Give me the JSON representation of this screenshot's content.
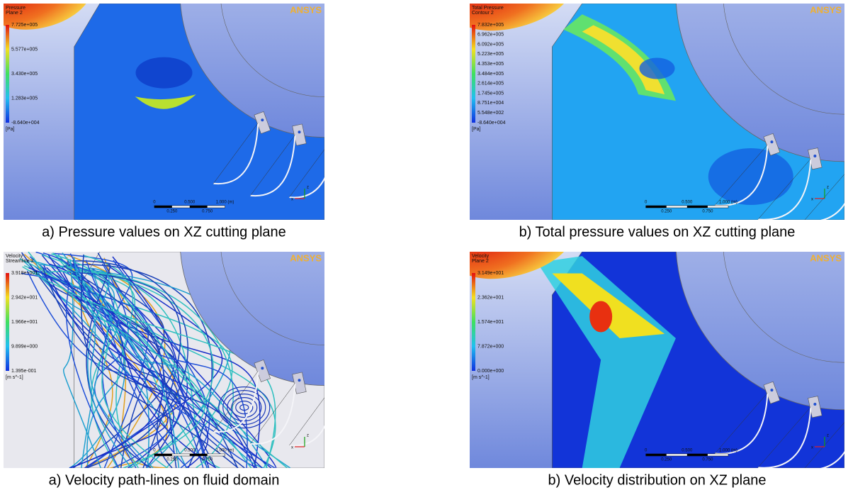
{
  "panels": [
    {
      "caption": "a) Pressure values on XZ cutting plane",
      "legend_title": [
        "Pressure",
        "Plane 2"
      ],
      "legend_labels": [
        "7.725e+005",
        "5.577e+005",
        "3.430e+005",
        "1.283e+005",
        "-8.640e+004"
      ],
      "unit": "[Pa]",
      "logo": "ANSYS",
      "scale_top": [
        "0",
        "0.500",
        "1.000 (m)"
      ],
      "scale_bottom": [
        "0.250",
        "0.750"
      ],
      "axes": [
        "z",
        "x"
      ]
    },
    {
      "caption": "b) Total pressure values on XZ cutting plane",
      "legend_title": [
        "Total Pressure",
        "Contour 2"
      ],
      "legend_labels": [
        "7.832e+005",
        "6.962e+005",
        "6.092e+005",
        "5.223e+005",
        "4.353e+005",
        "3.484e+005",
        "2.614e+005",
        "1.745e+005",
        "8.751e+004",
        "5.548e+002",
        "-8.640e+004"
      ],
      "unit": "[Pa]",
      "logo": "ANSYS",
      "scale_top": [
        "0",
        "0.500",
        "1.000 (m)"
      ],
      "scale_bottom": [
        "0.250",
        "0.750"
      ],
      "axes": [
        "z",
        "x"
      ]
    },
    {
      "caption": "a) Velocity path-lines on fluid domain",
      "legend_title": [
        "Velocity",
        "Streamline 3"
      ],
      "legend_labels": [
        "3.918e+001",
        "2.942e+001",
        "1.966e+001",
        "9.899e+000",
        "1.395e-001"
      ],
      "unit": "[m s^-1]",
      "logo": "ANSYS",
      "scale_top": [
        "0",
        "0.500",
        "1.000 (m)"
      ],
      "scale_bottom": [
        "0.250",
        "0.750"
      ],
      "axes": [
        "z",
        "x"
      ]
    },
    {
      "caption": "b) Velocity distribution on XZ plane",
      "legend_title": [
        "Velocity",
        "Plane 2"
      ],
      "legend_labels": [
        "3.149e+001",
        "2.362e+001",
        "1.574e+001",
        "7.872e+000",
        "0.000e+000"
      ],
      "unit": "[m s^-1]",
      "logo": "ANSYS",
      "scale_top": [
        "0",
        "0.500",
        "1.000 (m)"
      ],
      "scale_bottom": [
        "0.250",
        "0.750"
      ],
      "axes": [
        "z",
        "x"
      ]
    }
  ]
}
